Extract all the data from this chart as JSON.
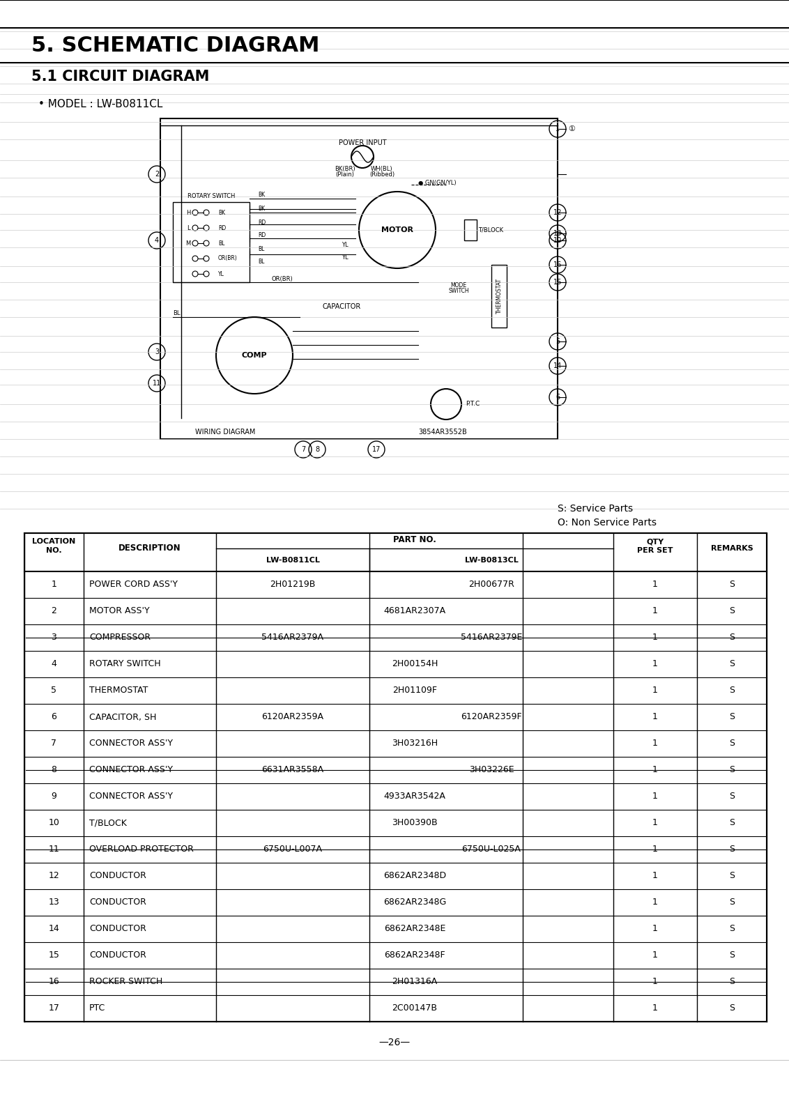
{
  "title": "5. SCHEMATIC DIAGRAM",
  "subtitle": "5.1 CIRCUIT DIAGRAM",
  "model": "• MODEL : LW-B0811CL",
  "service_note1": "S: Service Parts",
  "service_note2": "O: Non Service Parts",
  "page_number": "—26—",
  "table_headers": [
    "LOCATION\nNO.",
    "DESCRIPTION",
    "LW-B0811CL",
    "LW-B0813CL",
    "QTY\nPER SET",
    "REMARKS"
  ],
  "col_header_part": "PART NO.",
  "rows": [
    [
      "1",
      "POWER CORD ASS'Y",
      "2H01219B",
      "2H00677R",
      "1",
      "S"
    ],
    [
      "2",
      "MOTOR ASS'Y",
      "4681AR2307A",
      "",
      "1",
      "S"
    ],
    [
      "3",
      "COMPRESSOR",
      "5416AR2379A",
      "5416AR2379E",
      "1",
      "S"
    ],
    [
      "4",
      "ROTARY SWITCH",
      "2H00154H",
      "",
      "1",
      "S"
    ],
    [
      "5",
      "THERMOSTAT",
      "2H01109F",
      "",
      "1",
      "S"
    ],
    [
      "6",
      "CAPACITOR, SH",
      "6120AR2359A",
      "6120AR2359F",
      "1",
      "S"
    ],
    [
      "7",
      "CONNECTOR ASS'Y",
      "3H03216H",
      "",
      "1",
      "S"
    ],
    [
      "8",
      "CONNECTOR ASS'Y",
      "6631AR3558A",
      "3H03226E",
      "1",
      "S"
    ],
    [
      "9",
      "CONNECTOR ASS'Y",
      "4933AR3542A",
      "",
      "1",
      "S"
    ],
    [
      "10",
      "T/BLOCK",
      "3H00390B",
      "",
      "1",
      "S"
    ],
    [
      "11",
      "OVERLOAD PROTECTOR",
      "6750U-L007A",
      "6750U-L025A",
      "1",
      "S"
    ],
    [
      "12",
      "CONDUCTOR",
      "6862AR2348D",
      "",
      "1",
      "S"
    ],
    [
      "13",
      "CONDUCTOR",
      "6862AR2348G",
      "",
      "1",
      "S"
    ],
    [
      "14",
      "CONDUCTOR",
      "6862AR2348E",
      "",
      "1",
      "S"
    ],
    [
      "15",
      "CONDUCTOR",
      "6862AR2348F",
      "",
      "1",
      "S"
    ],
    [
      "16",
      "ROCKER SWITCH",
      "2H01316A",
      "",
      "1",
      "S"
    ],
    [
      "17",
      "PTC",
      "2C00147B",
      "",
      "1",
      "S"
    ]
  ],
  "strikethrough_rows": [
    2,
    7,
    10,
    15
  ],
  "bg_color": "#ffffff",
  "line_color": "#000000",
  "header_bg": "#ffffff"
}
